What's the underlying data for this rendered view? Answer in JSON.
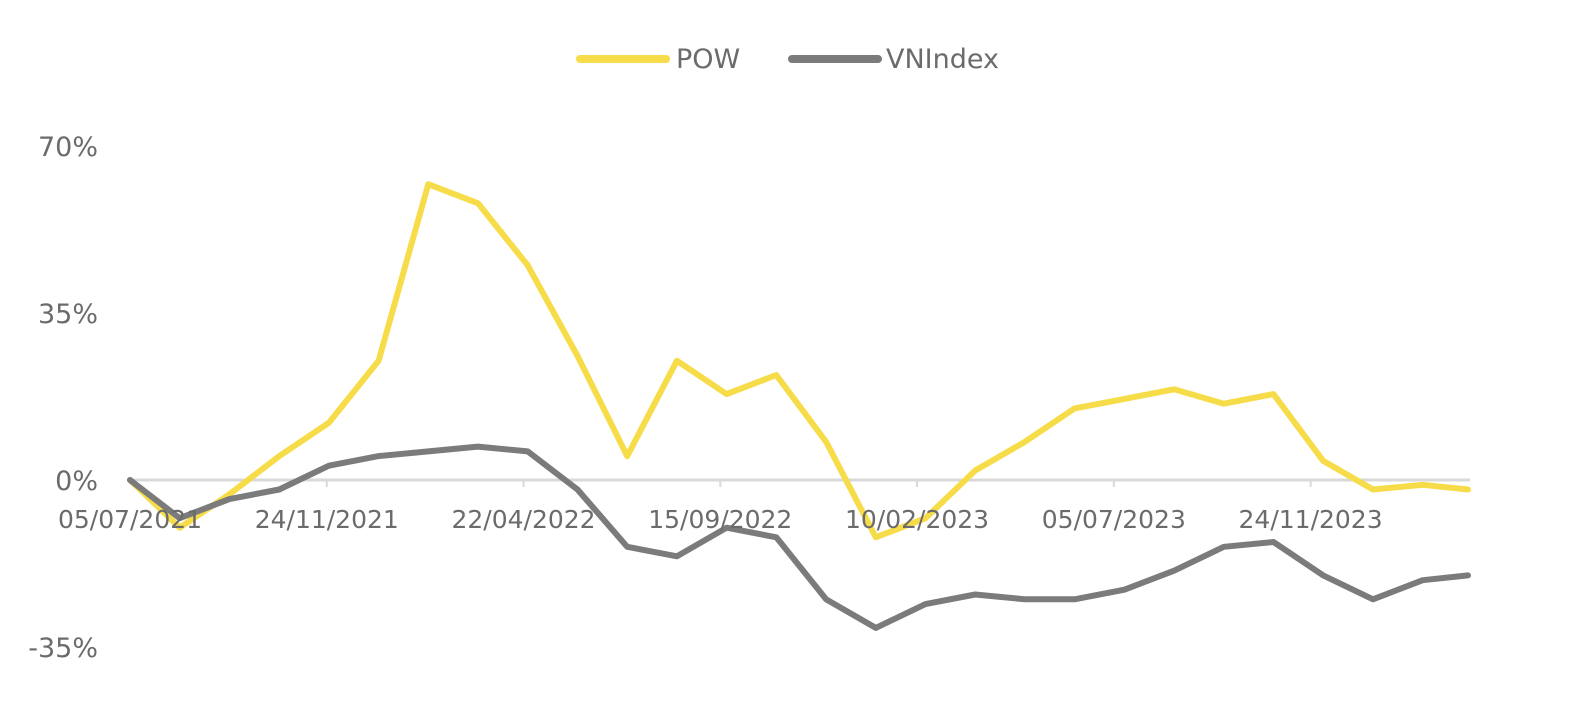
{
  "chart_data": {
    "type": "line",
    "title": "",
    "xlabel": "",
    "ylabel": "",
    "ylim": [
      -35,
      70
    ],
    "y_ticks": [
      70,
      35,
      0,
      -35
    ],
    "y_tick_labels": [
      "70%",
      "35%",
      "0%",
      "-35%"
    ],
    "x_tick_labels": [
      "05/07/2021",
      "24/11/2021",
      "22/04/2022",
      "15/09/2022",
      "10/02/2023",
      "05/07/2023",
      "24/11/2023"
    ],
    "grid": false,
    "legend": "top-center",
    "x": [
      "2021-07-05",
      "2021-08-08",
      "2021-09-11",
      "2021-10-15",
      "2021-11-18",
      "2021-12-22",
      "2022-01-25",
      "2022-02-28",
      "2022-04-03",
      "2022-05-07",
      "2022-06-10",
      "2022-07-14",
      "2022-08-17",
      "2022-09-20",
      "2022-10-24",
      "2022-11-27",
      "2022-12-31",
      "2023-02-03",
      "2023-03-09",
      "2023-04-12",
      "2023-05-16",
      "2023-06-19",
      "2023-07-23",
      "2023-08-26",
      "2023-09-29",
      "2023-11-02",
      "2023-12-06",
      "2024-01-06"
    ],
    "series": [
      {
        "name": "POW",
        "color": "#f7dc4a",
        "values": [
          0,
          -10,
          -3,
          5,
          12,
          25,
          62,
          58,
          45,
          26,
          5,
          25,
          18,
          22,
          8,
          -12,
          -8,
          2,
          8,
          15,
          17,
          19,
          16,
          18,
          4,
          -2,
          -1,
          -2
        ]
      },
      {
        "name": "VNIndex",
        "color": "#7b7b7b",
        "values": [
          0,
          -8,
          -4,
          -2,
          3,
          5,
          6,
          7,
          6,
          -2,
          -14,
          -16,
          -10,
          -12,
          -25,
          -31,
          -26,
          -24,
          -25,
          -25,
          -23,
          -19,
          -14,
          -13,
          -20,
          -25,
          -21,
          -20
        ]
      }
    ]
  }
}
